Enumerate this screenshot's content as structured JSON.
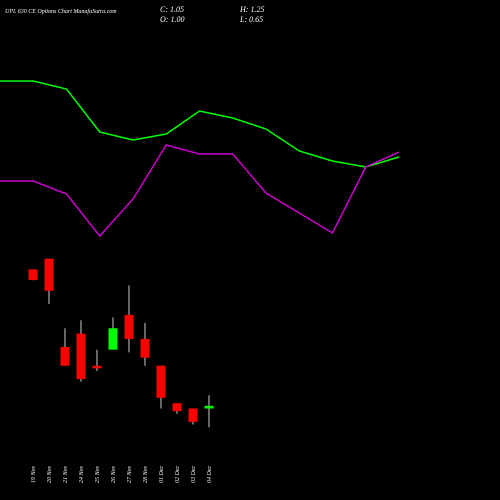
{
  "header": {
    "title": "UPL 630 CE Options Chart MunafaSutra.com",
    "close": "C: 1.05",
    "open": "O: 1.00",
    "high": "H: 1.25",
    "low": "L: 0.65"
  },
  "chart_data": [
    {
      "type": "candlestick",
      "categories": [
        "19 Nov",
        "20 Nov",
        "21 Nov",
        "24 Nov",
        "25 Nov",
        "26 Nov",
        "27 Nov",
        "28 Nov",
        "01 Dec",
        "02 Dec",
        "03 Dec",
        "04 Dec"
      ],
      "open": [
        3.6,
        3.8,
        2.15,
        2.4,
        1.8,
        2.1,
        2.75,
        2.3,
        1.8,
        1.1,
        1.0,
        1.0
      ],
      "high": [
        3.6,
        3.8,
        2.5,
        2.65,
        2.1,
        2.7,
        3.3,
        2.6,
        1.8,
        1.1,
        1.0,
        1.25
      ],
      "low": [
        3.4,
        2.95,
        1.8,
        1.5,
        1.7,
        2.1,
        2.05,
        1.8,
        1.0,
        0.9,
        0.7,
        0.65
      ],
      "close": [
        3.4,
        3.2,
        1.8,
        1.55,
        1.75,
        2.5,
        2.3,
        1.95,
        1.2,
        0.95,
        0.75,
        1.05
      ],
      "ylim": [
        0,
        4
      ],
      "up_color": "#00ff00",
      "down_color": "#ff0000"
    },
    {
      "type": "line",
      "series": [
        {
          "color": "#00ff00",
          "values": [
            84.5,
            84.5,
            80.5,
            59,
            55,
            58,
            69.5,
            66,
            60.5,
            49.5,
            44.5,
            41.5,
            46.5
          ]
        },
        {
          "color": "#cc00cc",
          "values": [
            34.5,
            34.5,
            28,
            7,
            25.5,
            52.5,
            48,
            48,
            28.5,
            18.5,
            8.5,
            41.5,
            49
          ]
        }
      ],
      "ylim": [
        0,
        100
      ]
    }
  ]
}
